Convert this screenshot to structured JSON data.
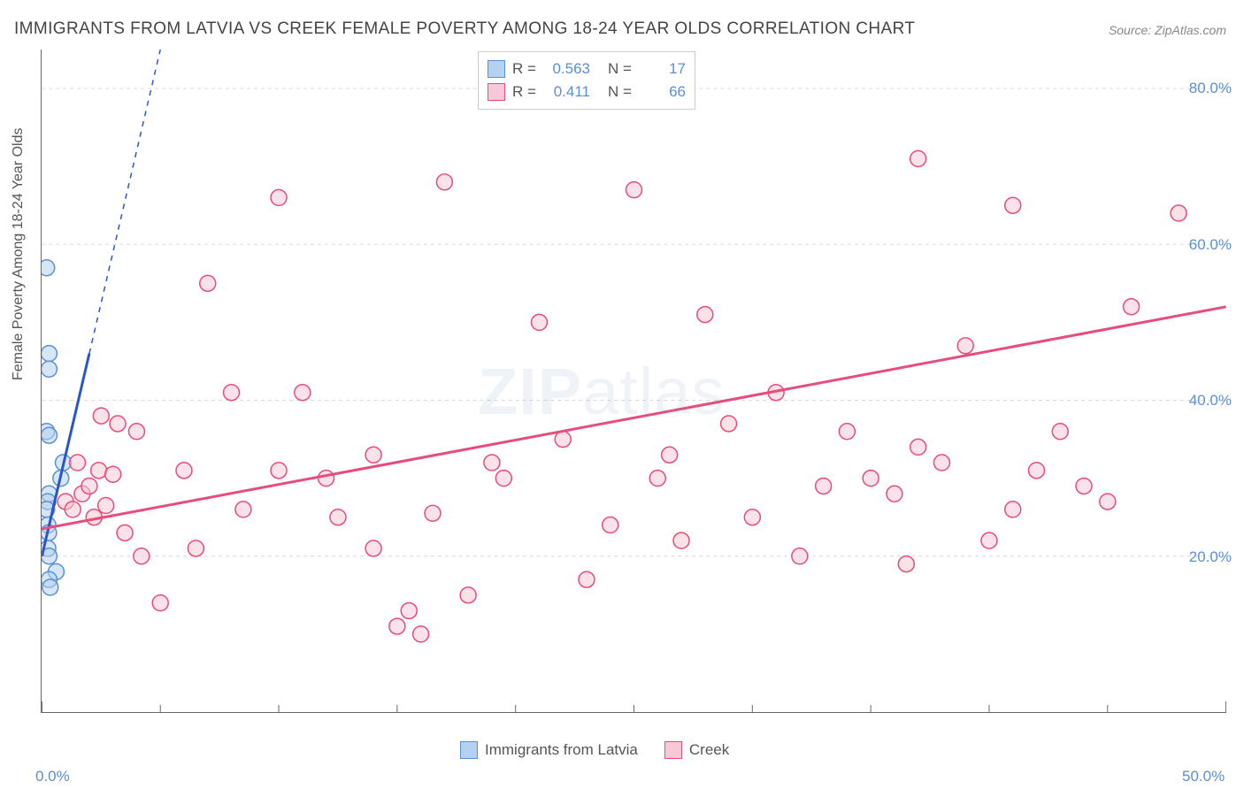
{
  "title": "IMMIGRANTS FROM LATVIA VS CREEK FEMALE POVERTY AMONG 18-24 YEAR OLDS CORRELATION CHART",
  "source": "Source: ZipAtlas.com",
  "ylabel": "Female Poverty Among 18-24 Year Olds",
  "watermark": "ZIPatlas",
  "chart": {
    "type": "scatter",
    "xlim": [
      0,
      50
    ],
    "ylim": [
      0,
      85
    ],
    "xtick_labels": [
      "0.0%",
      "50.0%"
    ],
    "xtick_positions": [
      0,
      50
    ],
    "ytick_labels": [
      "20.0%",
      "40.0%",
      "60.0%",
      "80.0%"
    ],
    "ytick_positions": [
      20,
      40,
      60,
      80
    ],
    "xtick_minor": [
      5,
      10,
      15,
      20,
      25,
      30,
      35,
      40,
      45
    ],
    "grid_color": "#d8d8d8",
    "background_color": "#ffffff",
    "point_radius": 9,
    "point_stroke_width": 1.5,
    "series": [
      {
        "name": "Immigrants from Latvia",
        "color_fill": "#b3d1f0",
        "color_stroke": "#5b8fd6",
        "trend_color": "#2a56c6",
        "trend_width": 3,
        "trend_dash_after_x": 2,
        "R": "0.563",
        "N": "17",
        "trend": {
          "x1": 0,
          "y1": 20,
          "x2": 5,
          "y2": 85
        },
        "points": [
          [
            0.2,
            57
          ],
          [
            0.3,
            46
          ],
          [
            0.3,
            44
          ],
          [
            0.2,
            36
          ],
          [
            0.3,
            35.5
          ],
          [
            0.8,
            30
          ],
          [
            0.9,
            32
          ],
          [
            0.3,
            28
          ],
          [
            0.25,
            27
          ],
          [
            0.2,
            26
          ],
          [
            0.25,
            24
          ],
          [
            0.28,
            23
          ],
          [
            0.25,
            21
          ],
          [
            0.3,
            20
          ],
          [
            0.6,
            18
          ],
          [
            0.3,
            17
          ],
          [
            0.35,
            16
          ]
        ]
      },
      {
        "name": "Creek",
        "color_fill": "#f8c8d6",
        "color_stroke": "#e94b7a",
        "trend_color": "#e94b7a",
        "trend_width": 3,
        "trend_dash_after_x": 999,
        "R": "0.411",
        "N": "66",
        "trend": {
          "x1": 0,
          "y1": 23.5,
          "x2": 50,
          "y2": 52
        },
        "points": [
          [
            10,
            66
          ],
          [
            17,
            68
          ],
          [
            25,
            67
          ],
          [
            37,
            71
          ],
          [
            41,
            65
          ],
          [
            48,
            64
          ],
          [
            7,
            55
          ],
          [
            2.5,
            38
          ],
          [
            3.2,
            37
          ],
          [
            4,
            36
          ],
          [
            6,
            31
          ],
          [
            8,
            41
          ],
          [
            10,
            31
          ],
          [
            11,
            41
          ],
          [
            12,
            30
          ],
          [
            12.5,
            25
          ],
          [
            14,
            33
          ],
          [
            14,
            21
          ],
          [
            15,
            11
          ],
          [
            15.5,
            13
          ],
          [
            16,
            10
          ],
          [
            16.5,
            25.5
          ],
          [
            18,
            15
          ],
          [
            19,
            32
          ],
          [
            19.5,
            30
          ],
          [
            21,
            50
          ],
          [
            22,
            35
          ],
          [
            23,
            17
          ],
          [
            24,
            24
          ],
          [
            26,
            30
          ],
          [
            26.5,
            33
          ],
          [
            27,
            22
          ],
          [
            28,
            51
          ],
          [
            29,
            37
          ],
          [
            30,
            25
          ],
          [
            31,
            41
          ],
          [
            32,
            20
          ],
          [
            33,
            29
          ],
          [
            34,
            36
          ],
          [
            35,
            30
          ],
          [
            36,
            28
          ],
          [
            36.5,
            19
          ],
          [
            37,
            34
          ],
          [
            38,
            32
          ],
          [
            39,
            47
          ],
          [
            40,
            22
          ],
          [
            41,
            26
          ],
          [
            42,
            31
          ],
          [
            43,
            36
          ],
          [
            44,
            29
          ],
          [
            45,
            27
          ],
          [
            46,
            52
          ],
          [
            1,
            27
          ],
          [
            1.3,
            26
          ],
          [
            1.5,
            32
          ],
          [
            1.7,
            28
          ],
          [
            2,
            29
          ],
          [
            2.2,
            25
          ],
          [
            2.4,
            31
          ],
          [
            2.7,
            26.5
          ],
          [
            3,
            30.5
          ],
          [
            3.5,
            23
          ],
          [
            4.2,
            20
          ],
          [
            5,
            14
          ],
          [
            6.5,
            21
          ],
          [
            8.5,
            26
          ]
        ]
      }
    ]
  },
  "legend_top": [
    {
      "swatch_fill": "#b3d1f0",
      "swatch_stroke": "#5b8fd6",
      "r_label": "R =",
      "r_val": "0.563",
      "n_label": "N =",
      "n_val": "17"
    },
    {
      "swatch_fill": "#f8c8d6",
      "swatch_stroke": "#e94b7a",
      "r_label": "R =",
      "r_val": "0.411",
      "n_label": "N =",
      "n_val": "66"
    }
  ],
  "legend_bottom": [
    {
      "swatch_fill": "#b3d1f0",
      "swatch_stroke": "#5b8fd6",
      "label": "Immigrants from Latvia"
    },
    {
      "swatch_fill": "#f8c8d6",
      "swatch_stroke": "#e94b7a",
      "label": "Creek"
    }
  ]
}
